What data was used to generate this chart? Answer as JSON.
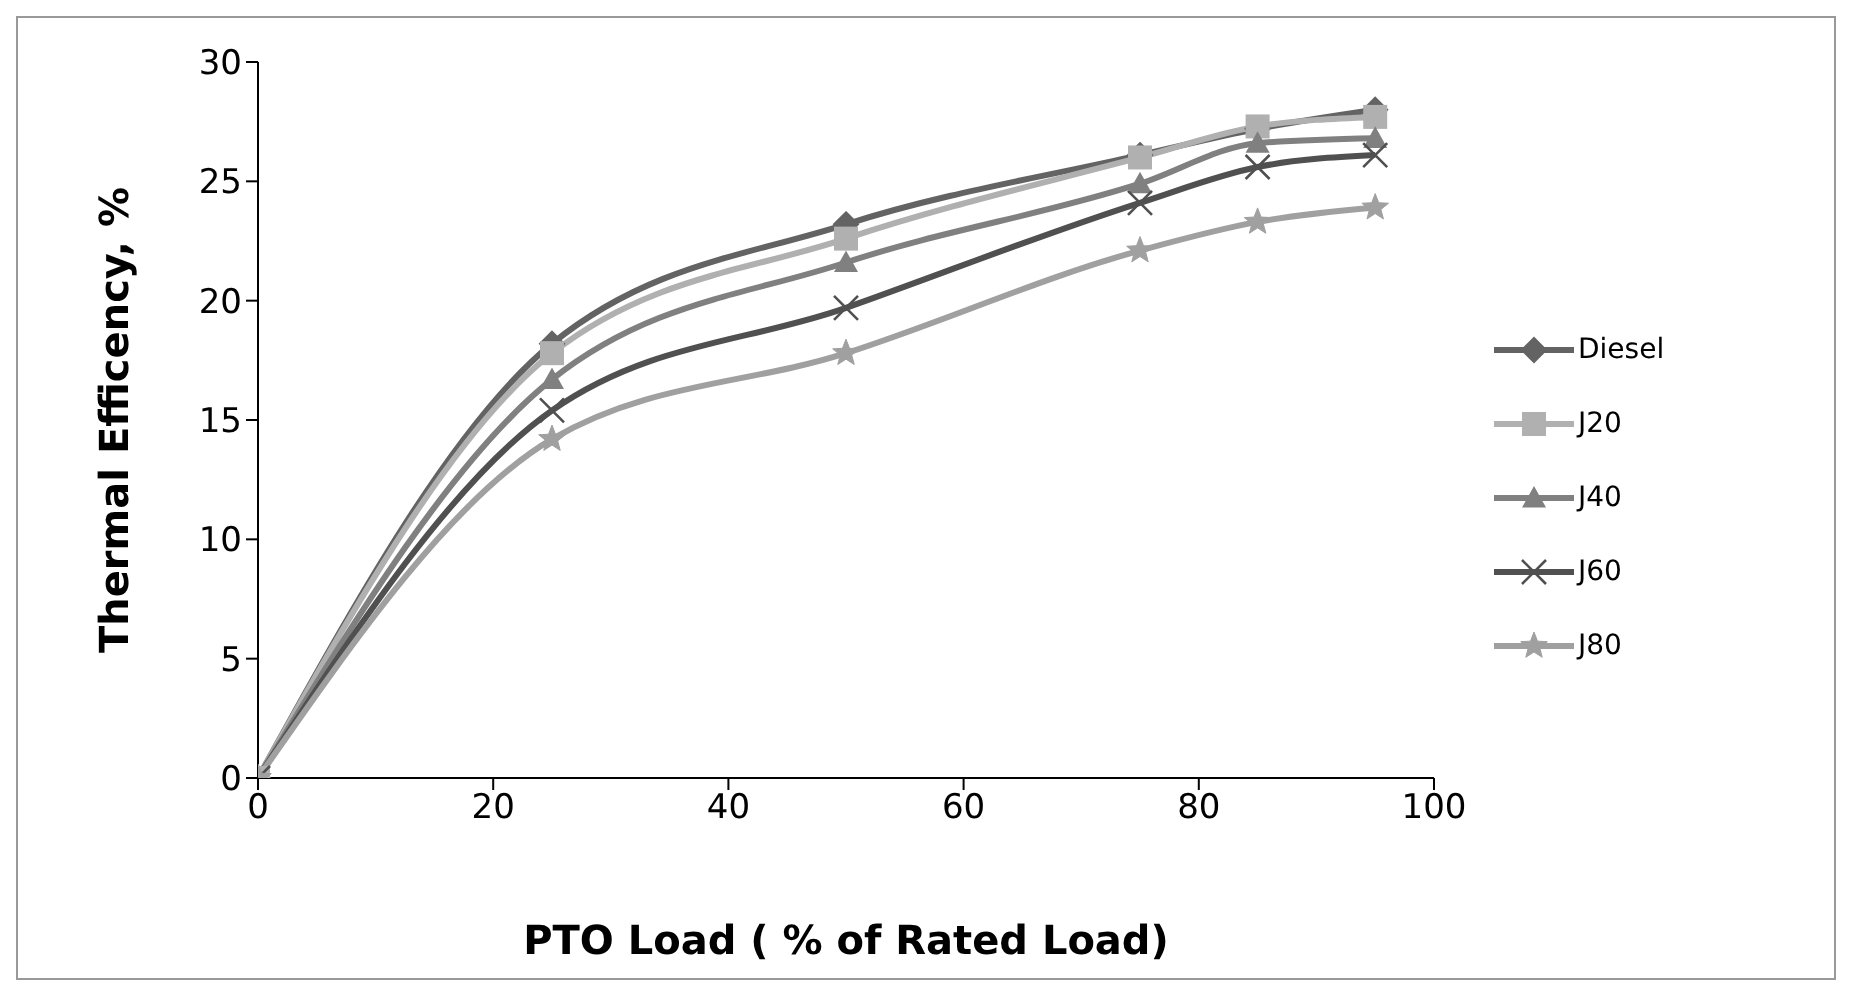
{
  "chart_data": {
    "type": "line",
    "xlabel": "PTO Load ( % of Rated Load)",
    "ylabel": "Thermal Efficency, %",
    "x": [
      0,
      25,
      50,
      75,
      85,
      95
    ],
    "xlim": [
      0,
      100
    ],
    "xticks": [
      0,
      20,
      40,
      60,
      80,
      100
    ],
    "ylim": [
      0,
      30
    ],
    "yticks": [
      0,
      5,
      10,
      15,
      20,
      25,
      30
    ],
    "grid": false,
    "legend": "right",
    "series": [
      {
        "name": "Diesel",
        "color": "#636363",
        "marker": "diamond",
        "values": [
          0,
          18.2,
          23.2,
          26.1,
          27.2,
          28.0
        ]
      },
      {
        "name": "J20",
        "color": "#b0b0b0",
        "marker": "square",
        "values": [
          0,
          17.8,
          22.6,
          26.0,
          27.3,
          27.7
        ]
      },
      {
        "name": "J40",
        "color": "#808080",
        "marker": "triangle",
        "values": [
          0,
          16.7,
          21.6,
          24.9,
          26.6,
          26.8
        ]
      },
      {
        "name": "J60",
        "color": "#505050",
        "marker": "cross",
        "values": [
          0,
          15.4,
          19.7,
          24.1,
          25.6,
          26.1
        ]
      },
      {
        "name": "J80",
        "color": "#a0a0a0",
        "marker": "star",
        "values": [
          0,
          14.2,
          17.8,
          22.1,
          23.3,
          23.9
        ]
      }
    ]
  }
}
